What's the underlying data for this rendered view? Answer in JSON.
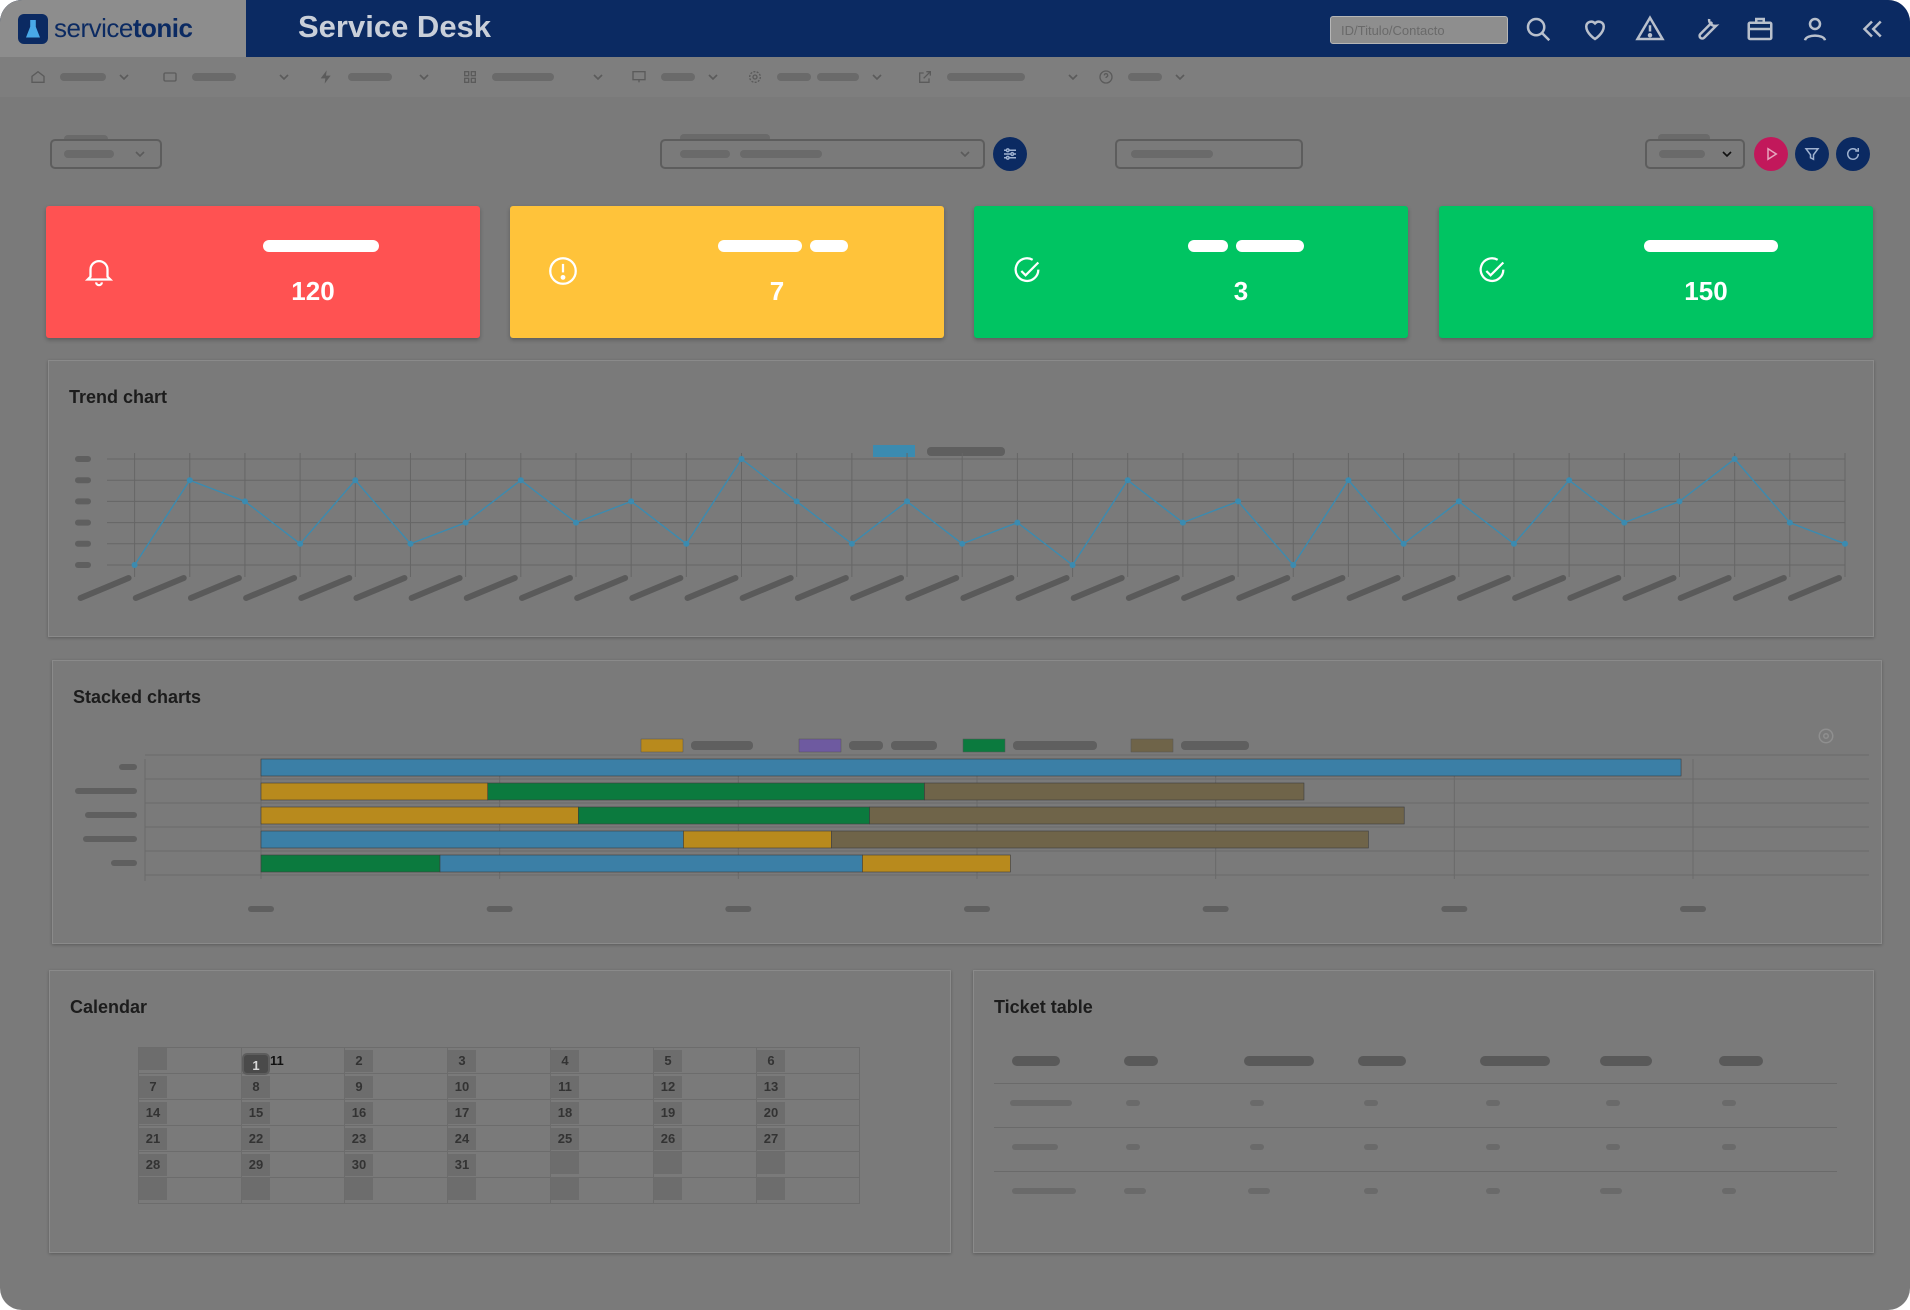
{
  "header": {
    "logo_prefix": "service",
    "logo_suffix": "tonic",
    "title": "Service Desk",
    "search_placeholder": "ID/Titulo/Contacto",
    "icons": [
      "search-icon",
      "heart-icon",
      "alert-triangle-icon",
      "wrench-icon",
      "briefcase-icon",
      "user-icon",
      "collapse-chevrons-icon"
    ]
  },
  "menu": {
    "items": [
      {
        "icon": "home-icon"
      },
      {
        "icon": "ticket-icon"
      },
      {
        "icon": "lightning-icon"
      },
      {
        "icon": "grid-icon"
      },
      {
        "icon": "monitor-icon"
      },
      {
        "icon": "gear-icon"
      },
      {
        "icon": "external-link-icon"
      },
      {
        "icon": "help-icon"
      }
    ]
  },
  "kpis": [
    {
      "value": "120",
      "color": "#ff5252",
      "icon": "bell-icon"
    },
    {
      "value": "7",
      "color": "#ffc33a",
      "icon": "exclamation-circle-icon"
    },
    {
      "value": "3",
      "color": "#00c462",
      "icon": "check-circle-icon"
    },
    {
      "value": "150",
      "color": "#00c462",
      "icon": "check-circle-icon"
    }
  ],
  "trend": {
    "title": "Trend chart"
  },
  "stacked": {
    "title": "Stacked charts"
  },
  "calendar": {
    "title": "Calendar",
    "selected_marker": "11",
    "weeks": [
      [
        "",
        "1",
        "2",
        "3",
        "4",
        "5",
        "6"
      ],
      [
        "7",
        "8",
        "9",
        "10",
        "11",
        "12",
        "13"
      ],
      [
        "14",
        "15",
        "16",
        "17",
        "18",
        "19",
        "20"
      ],
      [
        "21",
        "22",
        "23",
        "24",
        "25",
        "26",
        "27"
      ],
      [
        "28",
        "29",
        "30",
        "31",
        "",
        "",
        ""
      ],
      [
        "",
        "",
        "",
        "",
        "",
        "",
        ""
      ]
    ]
  },
  "tickets": {
    "title": "Ticket table"
  },
  "chart_data": [
    {
      "type": "line",
      "title": "Trend chart",
      "ylim": [
        0,
        5
      ],
      "grid": true,
      "legend_placement": "top-center",
      "series_color": "#3b8bb0",
      "values": [
        0,
        4,
        3,
        1,
        4,
        1,
        2,
        4,
        2,
        3,
        1,
        5,
        3,
        1,
        3,
        1,
        2,
        0,
        4,
        2,
        3,
        0,
        4,
        1,
        3,
        1,
        4,
        2,
        3,
        5,
        2,
        1
      ]
    },
    {
      "type": "bar",
      "orientation": "horizontal",
      "stacked": true,
      "title": "Stacked charts",
      "legend_placement": "top-center",
      "xlim": [
        0,
        600
      ],
      "series_colors": [
        "#3b7fa6",
        "#b88a1d",
        "#6e5aa0",
        "#0b7a3e",
        "#6f6449"
      ],
      "rows": [
        [
          {
            "c": 0,
            "v": 595
          }
        ],
        [
          {
            "c": 1,
            "v": 95
          },
          {
            "c": 3,
            "v": 183
          },
          {
            "c": 4,
            "v": 159
          }
        ],
        [
          {
            "c": 1,
            "v": 133
          },
          {
            "c": 3,
            "v": 122
          },
          {
            "c": 4,
            "v": 224
          }
        ],
        [
          {
            "c": 0,
            "v": 177
          },
          {
            "c": 1,
            "v": 62
          },
          {
            "c": 4,
            "v": 225
          }
        ],
        [
          {
            "c": 3,
            "v": 75
          },
          {
            "c": 0,
            "v": 177
          },
          {
            "c": 1,
            "v": 62
          }
        ]
      ]
    }
  ]
}
